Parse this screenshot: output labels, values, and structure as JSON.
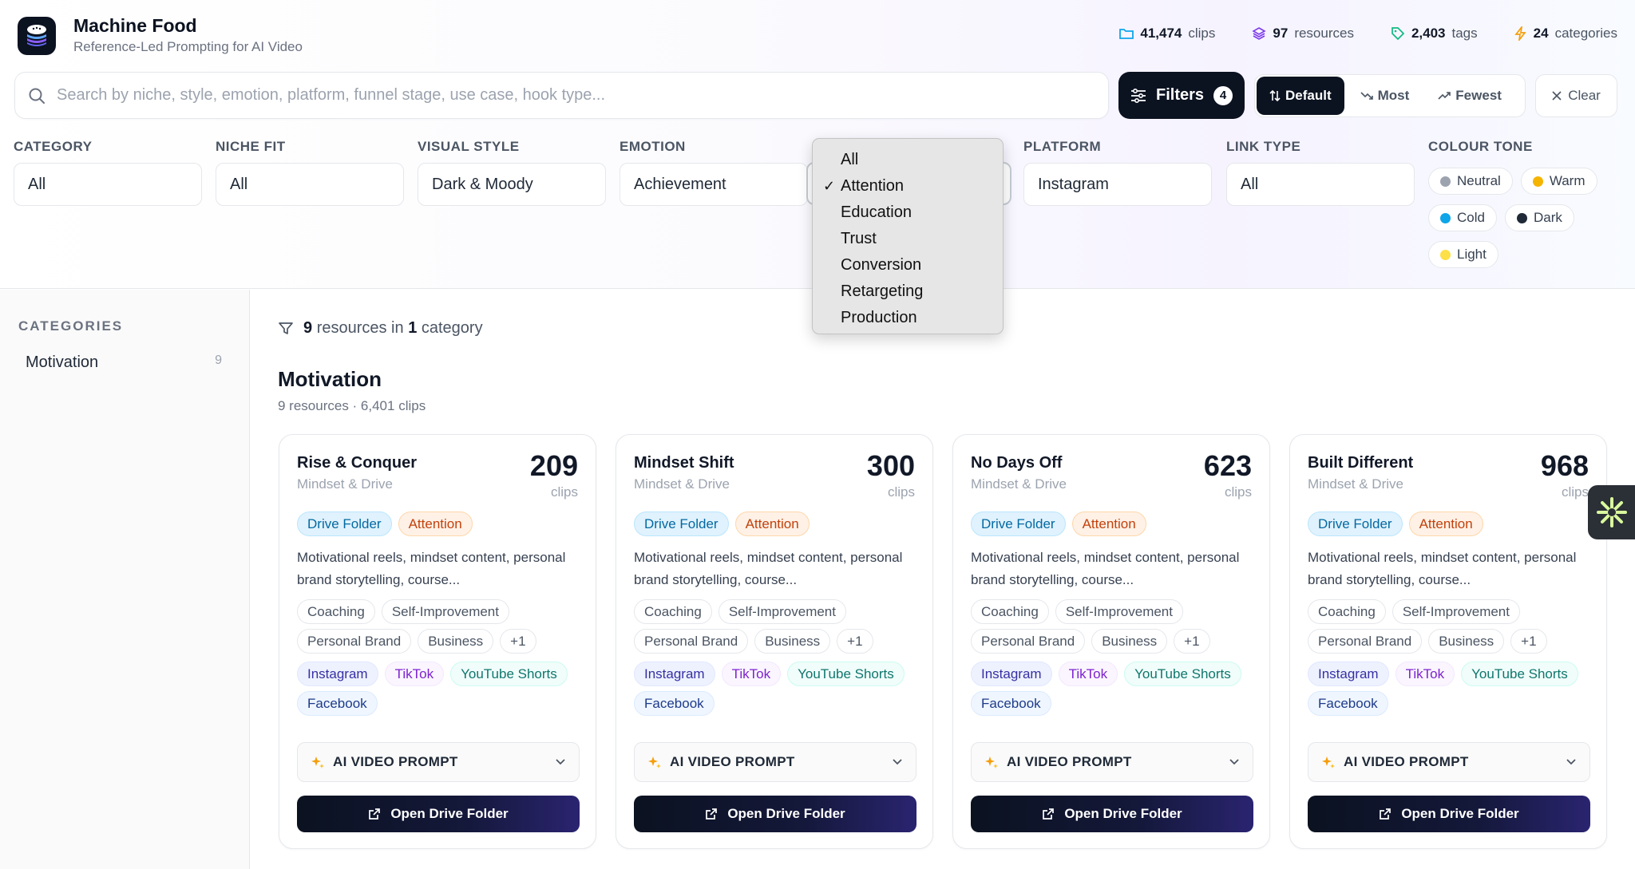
{
  "app": {
    "title": "Machine Food",
    "subtitle": "Reference-Led Prompting for AI Video"
  },
  "stats": [
    {
      "icon": "folder-icon",
      "value": "41,474",
      "label": "clips"
    },
    {
      "icon": "layers-icon",
      "value": "97",
      "label": "resources"
    },
    {
      "icon": "tag-icon",
      "value": "2,403",
      "label": "tags"
    },
    {
      "icon": "bolt-icon",
      "value": "24",
      "label": "categories"
    }
  ],
  "search": {
    "placeholder": "Search by niche, style, emotion, platform, funnel stage, use case, hook type...",
    "value": ""
  },
  "toolbar": {
    "filters_label": "Filters",
    "filters_count": "4",
    "sort_default": "Default",
    "sort_most": "Most",
    "sort_fewest": "Fewest",
    "clear_label": "Clear"
  },
  "filters": {
    "category": {
      "label": "CATEGORY",
      "value": "All"
    },
    "niche_fit": {
      "label": "NICHE FIT",
      "value": "All"
    },
    "visual_style": {
      "label": "VISUAL STYLE",
      "value": "Dark & Moody"
    },
    "emotion": {
      "label": "EMOTION",
      "value": "Achievement"
    },
    "platform": {
      "label": "PLATFORM",
      "value": "Instagram"
    },
    "link_type": {
      "label": "LINK TYPE",
      "value": "All"
    },
    "colour_tone": {
      "label": "COLOUR TONE",
      "options": [
        {
          "label": "Neutral",
          "color": "#9ca3af"
        },
        {
          "label": "Warm",
          "color": "#f5b400"
        },
        {
          "label": "Cold",
          "color": "#0ea5e9"
        },
        {
          "label": "Dark",
          "color": "#1f2937"
        },
        {
          "label": "Light",
          "color": "#fde047"
        }
      ]
    }
  },
  "funnel_dropdown": {
    "selected": "Attention",
    "options": [
      "All",
      "Attention",
      "Education",
      "Trust",
      "Conversion",
      "Retargeting",
      "Production"
    ]
  },
  "sidebar": {
    "title": "CATEGORIES",
    "items": [
      {
        "label": "Motivation",
        "count": "9"
      }
    ]
  },
  "summary": {
    "count": "9",
    "text1": "resources in",
    "cat_count": "1",
    "text2": "category"
  },
  "section": {
    "title": "Motivation",
    "subtitle": "9 resources · 6,401 clips"
  },
  "cards": [
    {
      "title": "Rise & Conquer",
      "category": "Mindset & Drive",
      "count": "209",
      "count_label": "clips",
      "link_type": "Drive Folder",
      "stage": "Attention",
      "description": "Motivational reels, mindset content, personal brand storytelling, course...",
      "niches": [
        "Coaching",
        "Self-Improvement",
        "Personal Brand",
        "Business",
        "+1"
      ],
      "platforms": [
        "Instagram",
        "TikTok",
        "YouTube Shorts",
        "Facebook"
      ],
      "prompt_label": "AI VIDEO PROMPT",
      "button_label": "Open Drive Folder"
    },
    {
      "title": "Mindset Shift",
      "category": "Mindset & Drive",
      "count": "300",
      "count_label": "clips",
      "link_type": "Drive Folder",
      "stage": "Attention",
      "description": "Motivational reels, mindset content, personal brand storytelling, course...",
      "niches": [
        "Coaching",
        "Self-Improvement",
        "Personal Brand",
        "Business",
        "+1"
      ],
      "platforms": [
        "Instagram",
        "TikTok",
        "YouTube Shorts",
        "Facebook"
      ],
      "prompt_label": "AI VIDEO PROMPT",
      "button_label": "Open Drive Folder"
    },
    {
      "title": "No Days Off",
      "category": "Mindset & Drive",
      "count": "623",
      "count_label": "clips",
      "link_type": "Drive Folder",
      "stage": "Attention",
      "description": "Motivational reels, mindset content, personal brand storytelling, course...",
      "niches": [
        "Coaching",
        "Self-Improvement",
        "Personal Brand",
        "Business",
        "+1"
      ],
      "platforms": [
        "Instagram",
        "TikTok",
        "YouTube Shorts",
        "Facebook"
      ],
      "prompt_label": "AI VIDEO PROMPT",
      "button_label": "Open Drive Folder"
    },
    {
      "title": "Built Different",
      "category": "Mindset & Drive",
      "count": "968",
      "count_label": "clips",
      "link_type": "Drive Folder",
      "stage": "Attention",
      "description": "Motivational reels, mindset content, personal brand storytelling, course...",
      "niches": [
        "Coaching",
        "Self-Improvement",
        "Personal Brand",
        "Business",
        "+1"
      ],
      "platforms": [
        "Instagram",
        "TikTok",
        "YouTube Shorts",
        "Facebook"
      ],
      "prompt_label": "AI VIDEO PROMPT",
      "button_label": "Open Drive Folder"
    }
  ]
}
